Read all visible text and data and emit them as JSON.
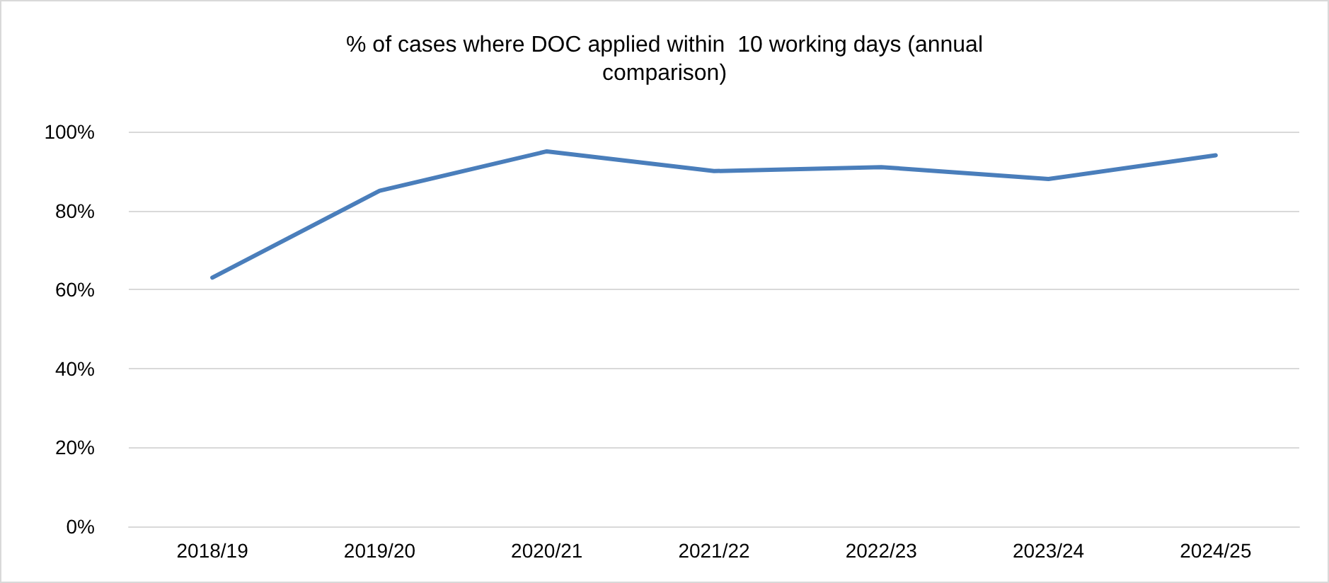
{
  "chart_data": {
    "type": "line",
    "title": "% of cases where DOC applied within  10 working days (annual\ncomparison)",
    "categories": [
      "2018/19",
      "2019/20",
      "2020/21",
      "2021/22",
      "2022/23",
      "2023/24",
      "2024/25"
    ],
    "series": [
      {
        "color": "#4a7ebb",
        "values": [
          63,
          85,
          95,
          90,
          91,
          88,
          94
        ]
      }
    ],
    "ylim": [
      0,
      100
    ],
    "yticks": [
      {
        "value": 0,
        "label": "0%"
      },
      {
        "value": 20,
        "label": "20%"
      },
      {
        "value": 40,
        "label": "40%"
      },
      {
        "value": 60,
        "label": "60%"
      },
      {
        "value": 80,
        "label": "80%"
      },
      {
        "value": 100,
        "label": "100%"
      }
    ],
    "grid": "y",
    "marker": "none",
    "line_style": "solid"
  }
}
